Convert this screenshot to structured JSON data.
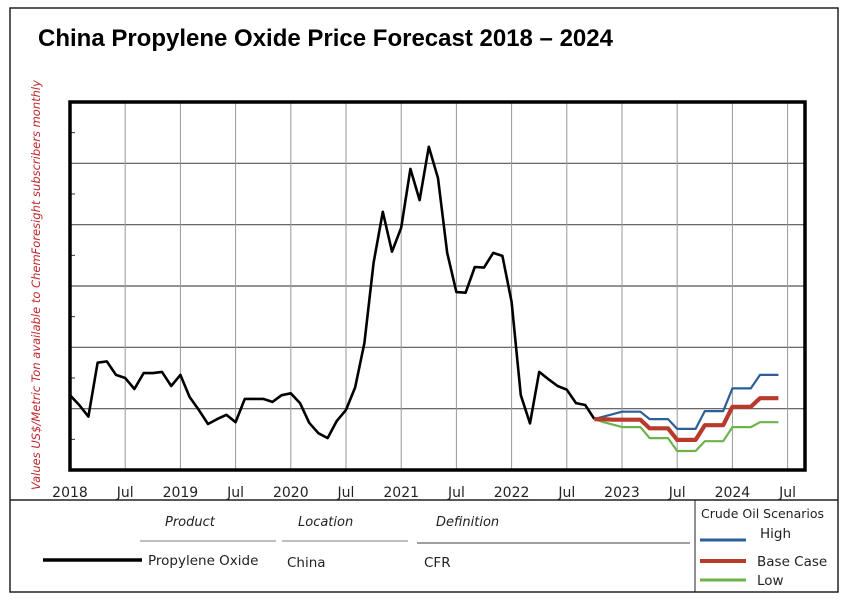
{
  "chart_data": {
    "type": "line",
    "title": "China Propylene Oxide Price Forecast 2018 – 2024",
    "ylabel": "Values US$/Metric Ton available to ChemForesight subscribers monthly",
    "xlabel": "",
    "x_tick_labels": [
      "2018",
      "Jul",
      "2019",
      "Jul",
      "2020",
      "Jul",
      "2021",
      "Jul",
      "2022",
      "Jul",
      "2023",
      "Jul",
      "2024",
      "Jul"
    ],
    "xlim": [
      "2018-01",
      "2024-12"
    ],
    "ylim": [
      0,
      6
    ],
    "y_note": "y values in gridline units; axis has no printed values",
    "grid": true,
    "legend_table": {
      "headers": [
        "Product",
        "Location",
        "Definition"
      ],
      "row": {
        "product": "Propylene Oxide",
        "location": "China",
        "definition": "CFR"
      }
    },
    "scenario_legend": {
      "title": "Crude Oil Scenarios",
      "items": [
        {
          "label": "High",
          "color": "#2a5f97"
        },
        {
          "label": "Base Case",
          "color": "#b83a2b"
        },
        {
          "label": "Low",
          "color": "#6db34a"
        }
      ]
    },
    "series": [
      {
        "name": "Propylene Oxide",
        "color": "#000000",
        "start": "2018-01",
        "values": [
          1.22,
          1.06,
          0.87,
          1.75,
          1.77,
          1.55,
          1.5,
          1.32,
          1.58,
          1.58,
          1.6,
          1.37,
          1.55,
          1.19,
          0.98,
          0.75,
          0.83,
          0.9,
          0.78,
          1.16,
          1.16,
          1.16,
          1.11,
          1.22,
          1.25,
          1.09,
          0.77,
          0.6,
          0.52,
          0.8,
          0.98,
          1.35,
          2.07,
          3.38,
          4.21,
          3.56,
          3.95,
          4.91,
          4.4,
          5.27,
          4.76,
          3.54,
          2.9,
          2.89,
          3.31,
          3.3,
          3.54,
          3.49,
          2.74,
          1.22,
          0.76,
          1.6,
          1.48,
          1.37,
          1.31,
          1.09,
          1.06,
          0.83
        ]
      },
      {
        "name": "High",
        "color": "#2a5f97",
        "start": "2022-10",
        "values": [
          0.83,
          0.87,
          0.91,
          0.95,
          0.95,
          0.95,
          0.83,
          0.83,
          0.83,
          0.67,
          0.67,
          0.67,
          0.96,
          0.96,
          0.96,
          1.33,
          1.33,
          1.33,
          1.55,
          1.55,
          1.55
        ]
      },
      {
        "name": "Base Case",
        "color": "#b83a2b",
        "start": "2022-10",
        "values": [
          0.83,
          0.83,
          0.82,
          0.82,
          0.82,
          0.82,
          0.68,
          0.68,
          0.68,
          0.49,
          0.49,
          0.49,
          0.73,
          0.73,
          0.73,
          1.03,
          1.03,
          1.03,
          1.17,
          1.17,
          1.17
        ]
      },
      {
        "name": "Low",
        "color": "#6db34a",
        "start": "2022-10",
        "values": [
          0.83,
          0.78,
          0.74,
          0.7,
          0.7,
          0.7,
          0.52,
          0.52,
          0.52,
          0.31,
          0.31,
          0.31,
          0.47,
          0.47,
          0.47,
          0.7,
          0.7,
          0.7,
          0.78,
          0.78,
          0.78
        ]
      }
    ]
  }
}
